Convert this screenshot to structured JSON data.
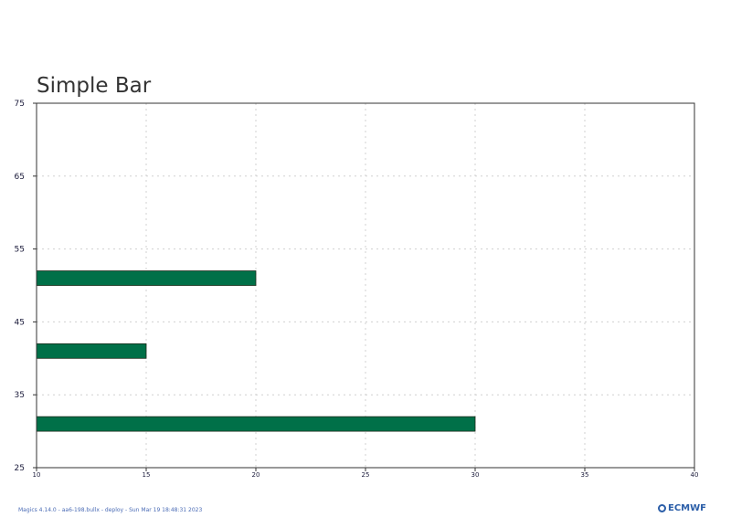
{
  "chart_data": {
    "type": "bar",
    "orientation": "horizontal",
    "title": "Simple Bar",
    "y": [
      30,
      40,
      50
    ],
    "values": [
      30,
      15,
      20
    ],
    "xlim": [
      10,
      40
    ],
    "ylim": [
      25,
      75
    ],
    "xticks": [
      "10",
      "15",
      "20",
      "25",
      "30",
      "35",
      "40"
    ],
    "yticks": [
      "25",
      "35",
      "45",
      "55",
      "65",
      "75"
    ],
    "grid": true,
    "bar_color": "#007048"
  },
  "footer": {
    "text": "Magics 4.14.0 - aa6-198.bullx - deploy - Sun Mar 19 18:48:31 2023",
    "logo_text": "ECMWF"
  }
}
